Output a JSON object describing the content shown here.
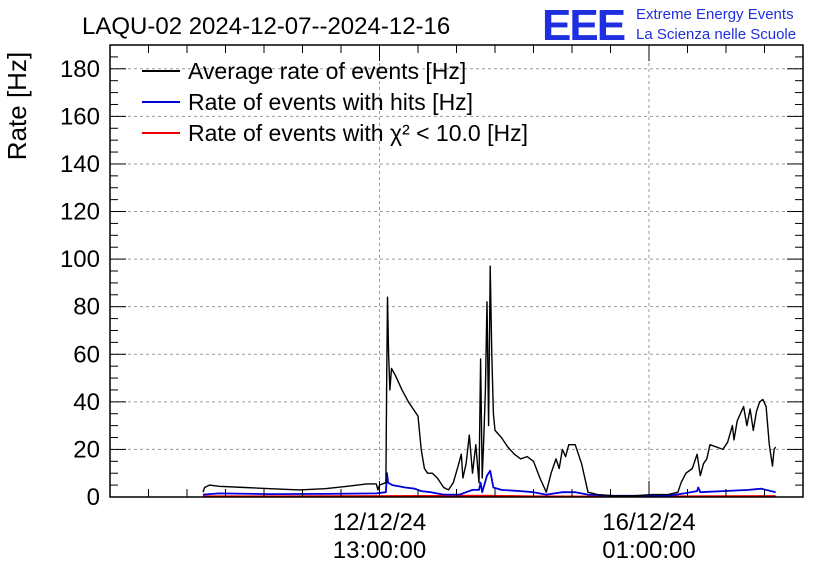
{
  "title": "LAQU-02 2024-12-07--2024-12-16",
  "logo": {
    "acronym": "EEE",
    "line1": "Extreme Energy Events",
    "line2": "La Scienza nelle Scuole"
  },
  "colors": {
    "average": "#000000",
    "hits": "#0000dd",
    "chi2": "#ee0000",
    "logo": "#1f2fe0"
  },
  "chart_data": {
    "type": "line",
    "title": "LAQU-02 2024-12-07--2024-12-16",
    "ylabel": "Rate [Hz]",
    "xlabel": "",
    "xlim": [
      "2024-12-09 01:00",
      "2024-12-18 01:00"
    ],
    "ylim": [
      0,
      190
    ],
    "yticks": [
      0,
      20,
      40,
      60,
      80,
      100,
      120,
      140,
      160,
      180
    ],
    "xticks": [
      {
        "x": "2024-12-12 13:00",
        "date": "12/12/24",
        "time": "13:00:00"
      },
      {
        "x": "2024-12-16 01:00",
        "date": "16/12/24",
        "time": "01:00:00"
      }
    ],
    "grid": true,
    "legend_position": "top-left",
    "series": [
      {
        "name": "Average rate of events [Hz]",
        "color": "#000000",
        "points": [
          [
            "2024-12-10 06:00",
            2
          ],
          [
            "2024-12-10 06:30",
            4
          ],
          [
            "2024-12-10 08:00",
            5
          ],
          [
            "2024-12-10 11:00",
            4.5
          ],
          [
            "2024-12-10 19:00",
            4
          ],
          [
            "2024-12-11 03:00",
            3.5
          ],
          [
            "2024-12-11 12:00",
            3
          ],
          [
            "2024-12-11 20:00",
            3.5
          ],
          [
            "2024-12-12 03:00",
            4.5
          ],
          [
            "2024-12-12 09:00",
            5.5
          ],
          [
            "2024-12-12 12:00",
            5.5
          ],
          [
            "2024-12-12 12:30",
            3
          ],
          [
            "2024-12-12 13:00",
            5
          ],
          [
            "2024-12-12 15:00",
            6
          ],
          [
            "2024-12-12 15:15",
            50
          ],
          [
            "2024-12-12 15:30",
            84
          ],
          [
            "2024-12-12 15:50",
            60
          ],
          [
            "2024-12-12 16:15",
            45
          ],
          [
            "2024-12-12 16:45",
            54
          ],
          [
            "2024-12-12 18:00",
            51
          ],
          [
            "2024-12-12 20:00",
            45
          ],
          [
            "2024-12-12 22:00",
            40
          ],
          [
            "2024-12-13 00:00",
            36
          ],
          [
            "2024-12-13 01:00",
            34
          ],
          [
            "2024-12-13 02:00",
            20
          ],
          [
            "2024-12-13 03:00",
            12
          ],
          [
            "2024-12-13 04:00",
            10
          ],
          [
            "2024-12-13 05:30",
            10
          ],
          [
            "2024-12-13 07:00",
            8
          ],
          [
            "2024-12-13 09:00",
            4
          ],
          [
            "2024-12-13 10:30",
            3
          ],
          [
            "2024-12-13 12:00",
            6
          ],
          [
            "2024-12-13 13:30",
            13
          ],
          [
            "2024-12-13 14:30",
            18
          ],
          [
            "2024-12-13 15:00",
            8
          ],
          [
            "2024-12-13 16:00",
            14
          ],
          [
            "2024-12-13 17:00",
            26
          ],
          [
            "2024-12-13 18:00",
            10
          ],
          [
            "2024-12-13 19:00",
            22
          ],
          [
            "2024-12-13 20:00",
            6
          ],
          [
            "2024-12-13 20:30",
            58
          ],
          [
            "2024-12-13 21:00",
            8
          ],
          [
            "2024-12-13 21:30",
            25
          ],
          [
            "2024-12-13 22:00",
            45
          ],
          [
            "2024-12-13 22:30",
            82
          ],
          [
            "2024-12-13 23:00",
            30
          ],
          [
            "2024-12-13 23:30",
            97
          ],
          [
            "2024-12-14 00:00",
            60
          ],
          [
            "2024-12-14 00:30",
            35
          ],
          [
            "2024-12-14 01:00",
            28
          ],
          [
            "2024-12-14 03:00",
            25
          ],
          [
            "2024-12-14 05:00",
            21
          ],
          [
            "2024-12-14 07:00",
            18
          ],
          [
            "2024-12-14 09:00",
            16
          ],
          [
            "2024-12-14 11:00",
            17
          ],
          [
            "2024-12-14 13:00",
            15
          ],
          [
            "2024-12-14 15:00",
            8
          ],
          [
            "2024-12-14 17:00",
            2
          ],
          [
            "2024-12-14 18:30",
            10
          ],
          [
            "2024-12-14 20:00",
            16
          ],
          [
            "2024-12-14 21:00",
            12
          ],
          [
            "2024-12-14 22:00",
            20
          ],
          [
            "2024-12-14 23:00",
            17
          ],
          [
            "2024-12-15 00:00",
            22
          ],
          [
            "2024-12-15 02:00",
            22
          ],
          [
            "2024-12-15 04:00",
            14
          ],
          [
            "2024-12-15 06:00",
            2
          ],
          [
            "2024-12-15 09:00",
            1
          ],
          [
            "2024-12-15 14:00",
            0.5
          ],
          [
            "2024-12-15 20:00",
            0.5
          ],
          [
            "2024-12-16 02:00",
            1
          ],
          [
            "2024-12-16 07:00",
            1
          ],
          [
            "2024-12-16 10:00",
            2
          ],
          [
            "2024-12-16 11:00",
            6
          ],
          [
            "2024-12-16 12:30",
            10
          ],
          [
            "2024-12-16 14:30",
            12
          ],
          [
            "2024-12-16 16:00",
            18
          ],
          [
            "2024-12-16 17:00",
            9
          ],
          [
            "2024-12-16 18:00",
            14
          ],
          [
            "2024-12-16 19:00",
            16
          ],
          [
            "2024-12-16 20:00",
            22
          ],
          [
            "2024-12-16 22:00",
            21
          ],
          [
            "2024-12-17 00:00",
            20
          ],
          [
            "2024-12-17 01:30",
            23
          ],
          [
            "2024-12-17 03:00",
            30
          ],
          [
            "2024-12-17 03:30",
            24
          ],
          [
            "2024-12-17 04:30",
            32
          ],
          [
            "2024-12-17 05:30",
            35
          ],
          [
            "2024-12-17 06:30",
            38
          ],
          [
            "2024-12-17 07:30",
            30
          ],
          [
            "2024-12-17 08:30",
            37
          ],
          [
            "2024-12-17 09:30",
            28
          ],
          [
            "2024-12-17 10:30",
            36
          ],
          [
            "2024-12-17 11:30",
            40
          ],
          [
            "2024-12-17 12:30",
            41
          ],
          [
            "2024-12-17 13:30",
            38
          ],
          [
            "2024-12-17 14:30",
            22
          ],
          [
            "2024-12-17 15:30",
            13
          ],
          [
            "2024-12-17 16:00",
            20
          ],
          [
            "2024-12-17 16:30",
            21
          ]
        ]
      },
      {
        "name": "Rate of events with hits [Hz]",
        "color": "#0000dd",
        "points": [
          [
            "2024-12-10 06:00",
            1
          ],
          [
            "2024-12-10 11:00",
            1.5
          ],
          [
            "2024-12-11 03:00",
            1.2
          ],
          [
            "2024-12-11 20:00",
            1.3
          ],
          [
            "2024-12-12 12:00",
            1.5
          ],
          [
            "2024-12-12 15:00",
            2
          ],
          [
            "2024-12-12 15:20",
            10
          ],
          [
            "2024-12-12 15:40",
            6
          ],
          [
            "2024-12-12 17:00",
            5
          ],
          [
            "2024-12-12 19:00",
            4.5
          ],
          [
            "2024-12-12 21:00",
            4
          ],
          [
            "2024-12-13 00:00",
            3.5
          ],
          [
            "2024-12-13 02:00",
            2.5
          ],
          [
            "2024-12-13 05:00",
            2
          ],
          [
            "2024-12-13 09:00",
            1
          ],
          [
            "2024-12-13 14:00",
            1
          ],
          [
            "2024-12-13 16:00",
            2
          ],
          [
            "2024-12-13 18:00",
            3
          ],
          [
            "2024-12-13 20:00",
            3
          ],
          [
            "2024-12-13 20:30",
            6
          ],
          [
            "2024-12-13 21:00",
            2
          ],
          [
            "2024-12-13 22:30",
            9
          ],
          [
            "2024-12-13 23:30",
            11
          ],
          [
            "2024-12-14 00:30",
            4
          ],
          [
            "2024-12-14 03:00",
            3
          ],
          [
            "2024-12-14 09:00",
            2.5
          ],
          [
            "2024-12-14 13:00",
            2
          ],
          [
            "2024-12-14 17:00",
            1
          ],
          [
            "2024-12-14 22:00",
            2
          ],
          [
            "2024-12-15 02:00",
            2
          ],
          [
            "2024-12-15 06:00",
            1
          ],
          [
            "2024-12-15 14:00",
            0.5
          ],
          [
            "2024-12-16 07:00",
            0.5
          ],
          [
            "2024-12-16 12:00",
            1.5
          ],
          [
            "2024-12-16 16:00",
            2.5
          ],
          [
            "2024-12-16 16:20",
            4
          ],
          [
            "2024-12-16 17:00",
            2
          ],
          [
            "2024-12-17 00:00",
            2.5
          ],
          [
            "2024-12-17 08:00",
            3
          ],
          [
            "2024-12-17 12:00",
            3.5
          ],
          [
            "2024-12-17 16:30",
            2
          ]
        ]
      },
      {
        "name": "Rate of events with χ² < 10.0 [Hz]",
        "color": "#ee0000",
        "points": [
          [
            "2024-12-10 06:00",
            0.3
          ],
          [
            "2024-12-12 15:00",
            0.4
          ],
          [
            "2024-12-13 22:00",
            0.6
          ],
          [
            "2024-12-14 12:00",
            0.3
          ],
          [
            "2024-12-15 12:00",
            0.2
          ],
          [
            "2024-12-16 12:00",
            0.3
          ],
          [
            "2024-12-17 16:30",
            0.4
          ]
        ]
      }
    ],
    "legend": [
      {
        "label": "Average rate of events [Hz]",
        "color": "#000000"
      },
      {
        "label": "Rate of events with hits [Hz]",
        "color": "#0000dd"
      },
      {
        "label": "Rate of events with χ² < 10.0 [Hz]",
        "color": "#ee0000"
      }
    ]
  }
}
